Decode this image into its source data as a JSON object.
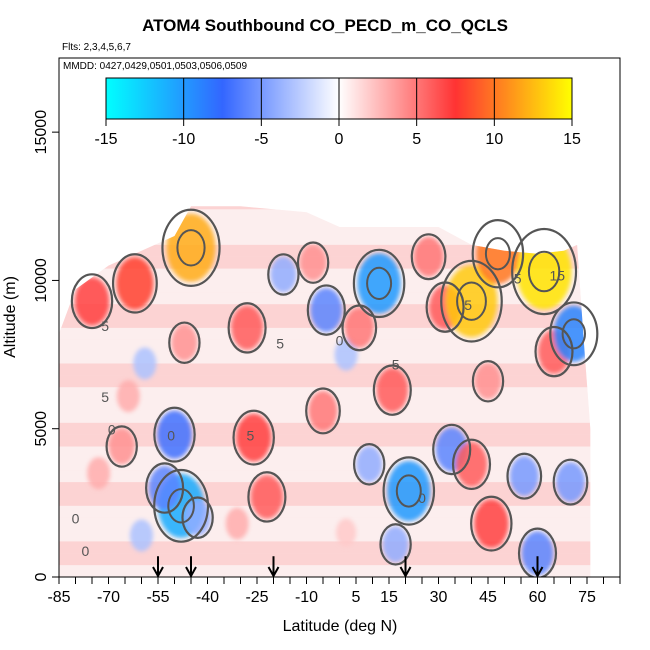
{
  "chart_data": {
    "type": "heatmap",
    "title": "ATOM4 Southbound CO_PECD_m_CO_QCLS",
    "flights_note": "Flts: 2,3,4,5,6,7",
    "dates_note": "MMDD: 0427,0429,0501,0503,0506,0509",
    "xlabel": "Latitude (deg N)",
    "ylabel": "Altitude (m)",
    "xlim": [
      -85,
      85
    ],
    "ylim": [
      0,
      17500
    ],
    "x_ticks": [
      -85,
      -70,
      -55,
      -40,
      -25,
      -10,
      5,
      15,
      30,
      45,
      60,
      75
    ],
    "x_minor_step": 5,
    "y_ticks": [
      0,
      5000,
      10000,
      15000
    ],
    "colorbar": {
      "range": [
        -15,
        15
      ],
      "ticks": [
        -15,
        -10,
        -5,
        0,
        5,
        10,
        15
      ],
      "colors": [
        "#00ffff",
        "#3366ff",
        "#ffffff",
        "#ff3333",
        "#ffff00"
      ]
    },
    "arrow_latitudes": [
      -55,
      -45,
      -20,
      20,
      60
    ],
    "contour_levels": [
      0,
      5,
      15
    ],
    "contour_labels": [
      {
        "x": -71,
        "y": 8300,
        "text": "5"
      },
      {
        "x": -71,
        "y": 5900,
        "text": "5"
      },
      {
        "x": -69,
        "y": 4800,
        "text": "0"
      },
      {
        "x": -80,
        "y": 1800,
        "text": "0"
      },
      {
        "x": -77,
        "y": 700,
        "text": "0"
      },
      {
        "x": -51,
        "y": 4600,
        "text": "0"
      },
      {
        "x": -27,
        "y": 4600,
        "text": "5"
      },
      {
        "x": -18,
        "y": 7700,
        "text": "5"
      },
      {
        "x": 0,
        "y": 7800,
        "text": "0"
      },
      {
        "x": 17,
        "y": 7000,
        "text": "5"
      },
      {
        "x": 25,
        "y": 2500,
        "text": "0"
      },
      {
        "x": 39,
        "y": 9000,
        "text": "5"
      },
      {
        "x": 54,
        "y": 9900,
        "text": "5"
      },
      {
        "x": 66,
        "y": 10000,
        "text": "15"
      }
    ],
    "coverage_mask": [
      [
        -70,
        10500
      ],
      [
        -50,
        11500
      ],
      [
        -45,
        12500
      ],
      [
        -30,
        12500
      ],
      [
        -10,
        12300
      ],
      [
        0,
        11800
      ],
      [
        10,
        11800
      ],
      [
        20,
        11800
      ],
      [
        30,
        11800
      ],
      [
        40,
        11200
      ],
      [
        50,
        11000
      ],
      [
        60,
        10900
      ],
      [
        68,
        11000
      ],
      [
        72,
        11200
      ],
      [
        74,
        8000
      ],
      [
        76,
        5000
      ]
    ],
    "anomalies": [
      {
        "x": -75,
        "y": 9300,
        "v": 7
      },
      {
        "x": -62,
        "y": 9900,
        "v": 8
      },
      {
        "x": -45,
        "y": 11100,
        "v": 12
      },
      {
        "x": -47,
        "y": 7900,
        "v": 4
      },
      {
        "x": -59,
        "y": 7200,
        "v": -3
      },
      {
        "x": -64,
        "y": 6100,
        "v": 3
      },
      {
        "x": -50,
        "y": 4800,
        "v": -7
      },
      {
        "x": -48,
        "y": 2400,
        "v": -11
      },
      {
        "x": -53,
        "y": 3000,
        "v": -6
      },
      {
        "x": -43,
        "y": 2000,
        "v": -4
      },
      {
        "x": -60,
        "y": 1400,
        "v": -3
      },
      {
        "x": -28,
        "y": 8400,
        "v": 6
      },
      {
        "x": -26,
        "y": 4700,
        "v": 7
      },
      {
        "x": -22,
        "y": 2700,
        "v": 6
      },
      {
        "x": -31,
        "y": 1800,
        "v": 3
      },
      {
        "x": -17,
        "y": 10200,
        "v": -4
      },
      {
        "x": -8,
        "y": 10600,
        "v": 4
      },
      {
        "x": -4,
        "y": 9000,
        "v": -6
      },
      {
        "x": 2,
        "y": 7500,
        "v": -3
      },
      {
        "x": -5,
        "y": 5600,
        "v": 5
      },
      {
        "x": 6,
        "y": 8400,
        "v": 5
      },
      {
        "x": 12,
        "y": 9900,
        "v": -10
      },
      {
        "x": 16,
        "y": 6300,
        "v": 6
      },
      {
        "x": 9,
        "y": 3800,
        "v": -4
      },
      {
        "x": 21,
        "y": 2900,
        "v": -10
      },
      {
        "x": 17,
        "y": 1100,
        "v": -4
      },
      {
        "x": 27,
        "y": 10800,
        "v": 5
      },
      {
        "x": 32,
        "y": 9100,
        "v": 6
      },
      {
        "x": 34,
        "y": 4300,
        "v": -6
      },
      {
        "x": 40,
        "y": 3800,
        "v": 6
      },
      {
        "x": 40,
        "y": 9300,
        "v": 13
      },
      {
        "x": 48,
        "y": 10900,
        "v": 10
      },
      {
        "x": 45,
        "y": 6600,
        "v": 4
      },
      {
        "x": 46,
        "y": 1800,
        "v": 7
      },
      {
        "x": 56,
        "y": 3400,
        "v": -5
      },
      {
        "x": 62,
        "y": 10300,
        "v": 14
      },
      {
        "x": 65,
        "y": 7600,
        "v": 6
      },
      {
        "x": 71,
        "y": 8200,
        "v": -9
      },
      {
        "x": 70,
        "y": 3200,
        "v": -5
      },
      {
        "x": 60,
        "y": 800,
        "v": -6
      },
      {
        "x": -73,
        "y": 3500,
        "v": 3
      },
      {
        "x": -66,
        "y": 4400,
        "v": 4
      },
      {
        "x": 2,
        "y": 1500,
        "v": 2
      }
    ]
  }
}
